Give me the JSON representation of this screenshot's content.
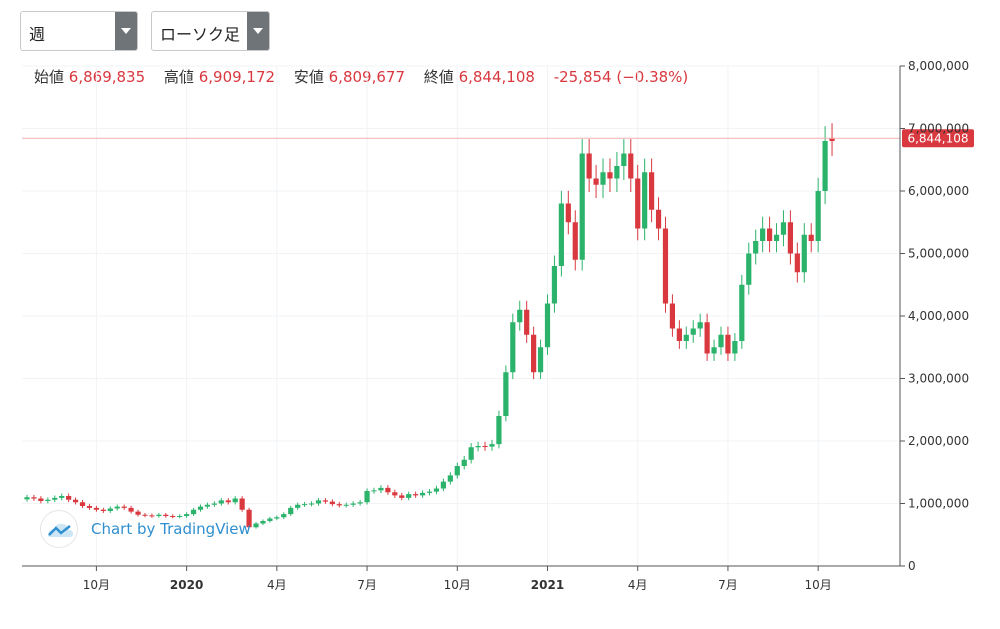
{
  "controls": {
    "period": {
      "value": "週"
    },
    "chart_type": {
      "value": "ローソク足"
    }
  },
  "ohlc": {
    "open_label": "始値",
    "open": "6,869,835",
    "high_label": "高値",
    "high": "6,909,172",
    "low_label": "安値",
    "low": "6,809,677",
    "close_label": "終値",
    "close": "6,844,108",
    "change": "-25,854 (−0.38%)"
  },
  "colors": {
    "up": "#26a69a",
    "up_body": "#2bb36b",
    "down": "#d9383f",
    "price_line": "#f3b0b0",
    "badge": "#d9383f"
  },
  "watermark": {
    "text": "Chart by TradingView",
    "icon": "tradingview-cloud-icon"
  },
  "chart_data": {
    "type": "candlestick",
    "interval": "weekly",
    "last_price_label": "6,844,108",
    "last_price": 6844108,
    "ylim": [
      0,
      8000000
    ],
    "y_ticks": [
      {
        "value": 0,
        "label": "0"
      },
      {
        "value": 1000000,
        "label": "1,000,000"
      },
      {
        "value": 2000000,
        "label": "2,000,000"
      },
      {
        "value": 3000000,
        "label": "3,000,000"
      },
      {
        "value": 4000000,
        "label": "4,000,000"
      },
      {
        "value": 5000000,
        "label": "5,000,000"
      },
      {
        "value": 6000000,
        "label": "6,000,000"
      },
      {
        "value": 7000000,
        "label": "7,000,000"
      },
      {
        "value": 8000000,
        "label": "8,000,000"
      }
    ],
    "x_ticks": [
      {
        "label": "10月",
        "index": 10,
        "bold": false
      },
      {
        "label": "2020",
        "index": 23,
        "bold": true
      },
      {
        "label": "4月",
        "index": 36,
        "bold": false
      },
      {
        "label": "7月",
        "index": 49,
        "bold": false
      },
      {
        "label": "10月",
        "index": 62,
        "bold": false
      },
      {
        "label": "2021",
        "index": 75,
        "bold": true
      },
      {
        "label": "4月",
        "index": 88,
        "bold": false
      },
      {
        "label": "7月",
        "index": 101,
        "bold": false
      },
      {
        "label": "10月",
        "index": 114,
        "bold": false
      }
    ],
    "close": [
      1100000,
      1080000,
      1040000,
      1060000,
      1090000,
      1120000,
      1060000,
      1020000,
      960000,
      930000,
      900000,
      880000,
      920000,
      950000,
      930000,
      870000,
      820000,
      810000,
      800000,
      820000,
      800000,
      790000,
      800000,
      830000,
      900000,
      950000,
      980000,
      1000000,
      1050000,
      1020000,
      1080000,
      900000,
      620000,
      680000,
      720000,
      760000,
      780000,
      830000,
      930000,
      980000,
      990000,
      1000000,
      1050000,
      1030000,
      990000,
      970000,
      980000,
      1000000,
      1020000,
      1200000,
      1210000,
      1250000,
      1180000,
      1130000,
      1090000,
      1150000,
      1130000,
      1170000,
      1190000,
      1240000,
      1350000,
      1450000,
      1600000,
      1700000,
      1900000,
      1920000,
      1910000,
      1950000,
      2400000,
      3100000,
      3900000,
      4100000,
      3700000,
      3100000,
      3500000,
      4200000,
      4800000,
      5800000,
      5500000,
      4900000,
      6600000,
      6200000,
      6100000,
      6300000,
      6200000,
      6400000,
      6600000,
      6200000,
      5400000,
      6300000,
      5700000,
      5400000,
      4200000,
      3800000,
      3600000,
      3700000,
      3800000,
      3900000,
      3400000,
      3500000,
      3700000,
      3400000,
      3600000,
      4500000,
      5000000,
      5200000,
      5400000,
      5200000,
      5300000,
      5500000,
      5000000,
      4700000,
      5300000,
      5200000,
      6000000,
      6800000,
      6844108
    ],
    "change_sign": [
      1,
      -1,
      -1,
      1,
      1,
      1,
      -1,
      -1,
      -1,
      -1,
      -1,
      -1,
      1,
      1,
      -1,
      -1,
      -1,
      -1,
      -1,
      1,
      -1,
      -1,
      1,
      1,
      1,
      1,
      1,
      1,
      1,
      -1,
      1,
      -1,
      -1,
      1,
      1,
      1,
      1,
      1,
      1,
      1,
      1,
      1,
      1,
      -1,
      -1,
      -1,
      1,
      1,
      1,
      1,
      1,
      1,
      -1,
      -1,
      -1,
      1,
      -1,
      1,
      1,
      1,
      1,
      1,
      1,
      1,
      1,
      1,
      -1,
      1,
      1,
      1,
      1,
      1,
      -1,
      -1,
      1,
      1,
      1,
      1,
      -1,
      -1,
      1,
      -1,
      -1,
      1,
      -1,
      1,
      1,
      -1,
      -1,
      1,
      -1,
      -1,
      -1,
      -1,
      -1,
      1,
      1,
      1,
      -1,
      1,
      1,
      -1,
      1,
      1,
      1,
      1,
      1,
      -1,
      1,
      1,
      -1,
      -1,
      1,
      -1,
      1,
      1,
      -1
    ]
  }
}
